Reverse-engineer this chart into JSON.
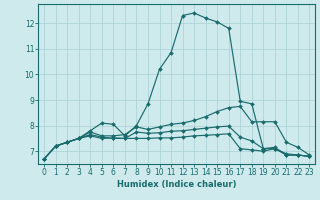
{
  "xlabel": "Humidex (Indice chaleur)",
  "background_color": "#ceeaed",
  "grid_color": "#aed4d7",
  "line_color": "#1a6b6b",
  "xlim": [
    -0.5,
    23.5
  ],
  "ylim": [
    6.5,
    12.75
  ],
  "yticks": [
    7,
    8,
    9,
    10,
    11,
    12
  ],
  "xticks": [
    0,
    1,
    2,
    3,
    4,
    5,
    6,
    7,
    8,
    9,
    10,
    11,
    12,
    13,
    14,
    15,
    16,
    17,
    18,
    19,
    20,
    21,
    22,
    23
  ],
  "lines": [
    {
      "x": [
        0,
        1,
        2,
        3,
        4,
        5,
        6,
        7,
        8,
        9,
        10,
        11,
        12,
        13,
        14,
        15,
        16,
        17,
        18,
        19,
        20,
        21,
        22,
        23
      ],
      "y": [
        6.7,
        7.2,
        7.35,
        7.5,
        7.8,
        8.1,
        8.05,
        7.6,
        8.0,
        8.85,
        10.2,
        10.85,
        12.3,
        12.4,
        12.2,
        12.05,
        11.8,
        8.95,
        8.85,
        7.1,
        7.15,
        6.85,
        6.85,
        6.8
      ]
    },
    {
      "x": [
        0,
        1,
        2,
        3,
        4,
        5,
        6,
        7,
        8,
        9,
        10,
        11,
        12,
        13,
        14,
        15,
        16,
        17,
        18,
        19,
        20,
        21,
        22,
        23
      ],
      "y": [
        6.7,
        7.2,
        7.35,
        7.5,
        7.75,
        7.6,
        7.6,
        7.65,
        7.95,
        7.85,
        7.95,
        8.05,
        8.1,
        8.2,
        8.35,
        8.55,
        8.7,
        8.75,
        8.15,
        8.15,
        8.15,
        7.35,
        7.15,
        6.85
      ]
    },
    {
      "x": [
        0,
        1,
        2,
        3,
        4,
        5,
        6,
        7,
        8,
        9,
        10,
        11,
        12,
        13,
        14,
        15,
        16,
        17,
        18,
        19,
        20,
        21,
        22,
        23
      ],
      "y": [
        6.7,
        7.2,
        7.35,
        7.5,
        7.65,
        7.55,
        7.5,
        7.5,
        7.75,
        7.7,
        7.72,
        7.78,
        7.8,
        7.85,
        7.9,
        7.95,
        7.98,
        7.55,
        7.4,
        7.1,
        7.1,
        6.9,
        6.85,
        6.8
      ]
    },
    {
      "x": [
        0,
        1,
        2,
        3,
        4,
        5,
        6,
        7,
        8,
        9,
        10,
        11,
        12,
        13,
        14,
        15,
        16,
        17,
        18,
        19,
        20,
        21,
        22,
        23
      ],
      "y": [
        6.7,
        7.2,
        7.35,
        7.5,
        7.6,
        7.5,
        7.52,
        7.5,
        7.5,
        7.5,
        7.52,
        7.52,
        7.55,
        7.6,
        7.62,
        7.65,
        7.68,
        7.1,
        7.05,
        7.0,
        7.1,
        6.85,
        6.85,
        6.8
      ]
    }
  ]
}
